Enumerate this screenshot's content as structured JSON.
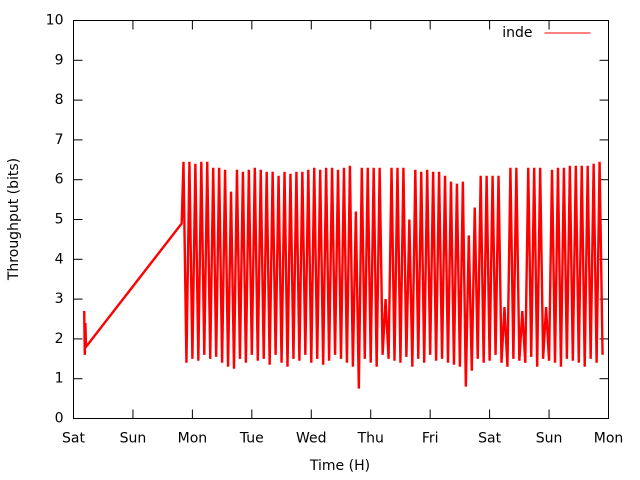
{
  "chart_data": {
    "type": "line",
    "xlabel": "Time (H)",
    "ylabel": "Throughput (bits)",
    "xlim": [
      0,
      9
    ],
    "ylim": [
      0,
      10
    ],
    "xticks": [
      {
        "value": 0,
        "label": "Sat"
      },
      {
        "value": 1,
        "label": "Sun"
      },
      {
        "value": 2,
        "label": "Mon"
      },
      {
        "value": 3,
        "label": "Tue"
      },
      {
        "value": 4,
        "label": "Wed"
      },
      {
        "value": 5,
        "label": "Thu"
      },
      {
        "value": 6,
        "label": "Fri"
      },
      {
        "value": 7,
        "label": "Sat"
      },
      {
        "value": 8,
        "label": "Sun"
      },
      {
        "value": 9,
        "label": "Mon"
      }
    ],
    "yticks": [
      0,
      1,
      2,
      3,
      4,
      5,
      6,
      7,
      8,
      9,
      10
    ],
    "legend": "top right",
    "series": [
      {
        "name": "inde",
        "color": "#ff0000",
        "x": [
          0.18,
          0.19,
          0.2,
          0.21,
          1.82,
          1.85,
          1.9,
          1.95,
          2,
          2.05,
          2.1,
          2.15,
          2.2,
          2.25,
          2.3,
          2.35,
          2.4,
          2.45,
          2.5,
          2.55,
          2.6,
          2.65,
          2.7,
          2.75,
          2.8,
          2.85,
          2.9,
          2.95,
          3,
          3.05,
          3.1,
          3.15,
          3.2,
          3.25,
          3.3,
          3.35,
          3.4,
          3.45,
          3.5,
          3.55,
          3.6,
          3.65,
          3.7,
          3.75,
          3.8,
          3.85,
          3.9,
          3.95,
          4,
          4.05,
          4.1,
          4.15,
          4.2,
          4.25,
          4.3,
          4.35,
          4.4,
          4.45,
          4.5,
          4.55,
          4.6,
          4.65,
          4.7,
          4.75,
          4.8,
          4.85,
          4.9,
          4.95,
          5,
          5.05,
          5.1,
          5.15,
          5.2,
          5.25,
          5.3,
          5.35,
          5.4,
          5.45,
          5.5,
          5.55,
          5.6,
          5.65,
          5.7,
          5.75,
          5.8,
          5.85,
          5.9,
          5.95,
          6,
          6.05,
          6.1,
          6.15,
          6.2,
          6.25,
          6.3,
          6.35,
          6.4,
          6.45,
          6.5,
          6.55,
          6.6,
          6.65,
          6.7,
          6.75,
          6.8,
          6.85,
          6.9,
          6.95,
          7,
          7.05,
          7.1,
          7.15,
          7.2,
          7.25,
          7.3,
          7.35,
          7.4,
          7.45,
          7.5,
          7.55,
          7.6,
          7.65,
          7.7,
          7.75,
          7.8,
          7.85,
          7.9,
          7.95,
          8,
          8.05,
          8.1,
          8.15,
          8.2,
          8.25,
          8.3,
          8.35,
          8.4,
          8.45,
          8.5,
          8.55,
          8.6,
          8.65,
          8.7,
          8.75,
          8.8,
          8.85,
          8.9
        ],
        "values": [
          2.7,
          1.6,
          2.4,
          1.8,
          4.9,
          6.45,
          1.4,
          6.45,
          1.5,
          6.4,
          1.45,
          6.45,
          1.6,
          6.45,
          1.5,
          6.3,
          1.55,
          6.3,
          1.4,
          6.25,
          1.3,
          5.7,
          1.25,
          6.25,
          1.5,
          6.2,
          1.4,
          6.25,
          1.6,
          6.3,
          1.45,
          6.25,
          1.5,
          6.2,
          1.35,
          6.2,
          1.6,
          6.1,
          1.4,
          6.2,
          1.3,
          6.15,
          1.5,
          6.2,
          1.45,
          6.2,
          1.6,
          6.25,
          1.4,
          6.3,
          1.5,
          6.25,
          1.35,
          6.3,
          1.45,
          6.3,
          1.6,
          6.25,
          1.5,
          6.3,
          1.4,
          6.35,
          1.3,
          5.2,
          0.75,
          6.3,
          1.5,
          6.3,
          1.4,
          6.3,
          1.3,
          6.3,
          1.6,
          3.0,
          1.5,
          6.3,
          1.45,
          6.3,
          1.4,
          6.3,
          1.55,
          5.0,
          1.3,
          6.25,
          1.5,
          6.2,
          1.4,
          6.25,
          1.6,
          6.2,
          1.45,
          6.2,
          1.5,
          6.1,
          1.4,
          5.95,
          1.35,
          5.9,
          1.3,
          5.95,
          0.8,
          4.6,
          1.2,
          5.3,
          1.5,
          6.1,
          1.4,
          6.1,
          1.45,
          6.1,
          1.6,
          6.1,
          1.4,
          2.8,
          1.3,
          6.3,
          1.5,
          6.3,
          1.45,
          2.7,
          1.4,
          6.3,
          1.55,
          6.3,
          1.3,
          6.3,
          1.5,
          2.8,
          1.45,
          6.25,
          1.4,
          6.3,
          1.3,
          6.3,
          1.5,
          6.35,
          1.45,
          6.35,
          1.4,
          6.35,
          1.3,
          6.35,
          1.5,
          6.4,
          1.4,
          6.45,
          1.6
        ]
      }
    ]
  }
}
